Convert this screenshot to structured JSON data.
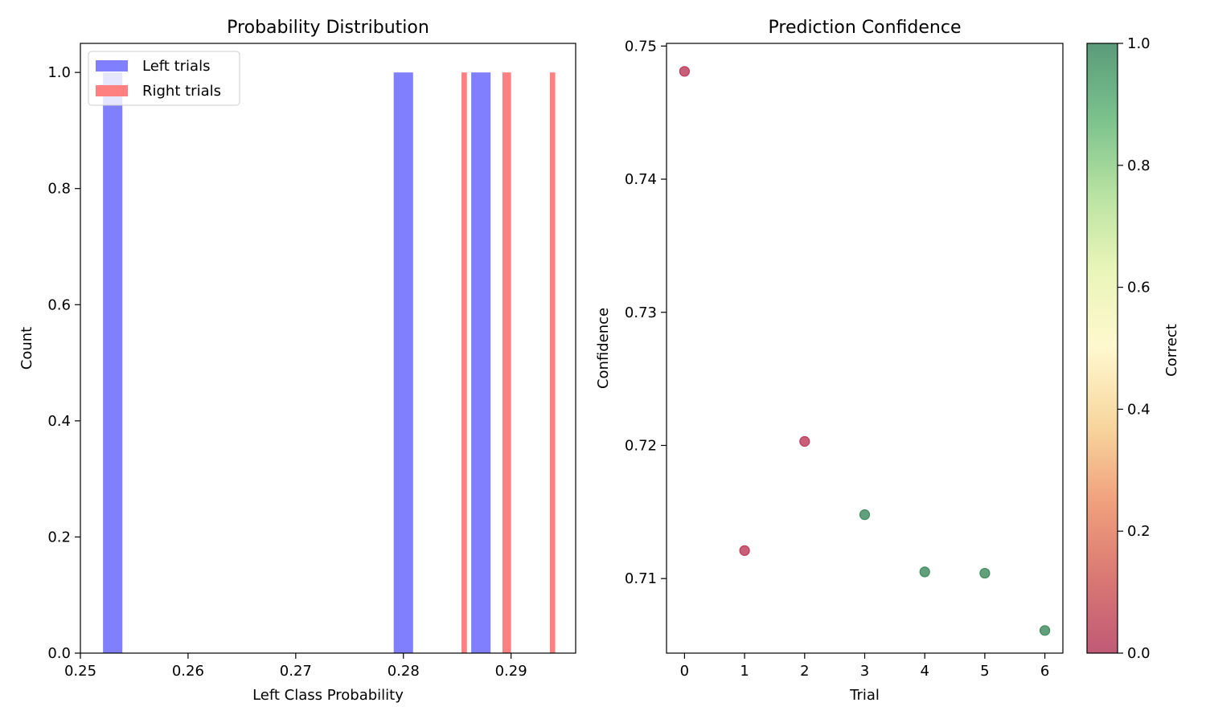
{
  "chart_data": [
    {
      "type": "bar",
      "title": "Probability Distribution",
      "xlabel": "Left Class Probability",
      "ylabel": "Count",
      "xlim": [
        0.25,
        0.296
      ],
      "ylim": [
        0,
        1.05
      ],
      "xticks": [
        0.25,
        0.26,
        0.27,
        0.28,
        0.29
      ],
      "yticks": [
        0.0,
        0.2,
        0.4,
        0.6,
        0.8,
        1.0
      ],
      "xtick_labels": [
        "0.25",
        "0.26",
        "0.27",
        "0.28",
        "0.29"
      ],
      "ytick_labels": [
        "0.0",
        "0.2",
        "0.4",
        "0.6",
        "0.8",
        "1.0"
      ],
      "grid": false,
      "legend_position": "upper-left",
      "series": [
        {
          "name": "Left trials",
          "color": "#8080ff",
          "bars": [
            {
              "x0": 0.2521,
              "x1": 0.2539,
              "count": 1
            },
            {
              "x0": 0.2791,
              "x1": 0.2809,
              "count": 1
            },
            {
              "x0": 0.2863,
              "x1": 0.2881,
              "count": 1
            }
          ]
        },
        {
          "name": "Right trials",
          "color": "#ff8080",
          "bars": [
            {
              "x0": 0.2854,
              "x1": 0.2859,
              "count": 1
            },
            {
              "x0": 0.2892,
              "x1": 0.29,
              "count": 1
            },
            {
              "x0": 0.2936,
              "x1": 0.2941,
              "count": 1
            }
          ]
        }
      ]
    },
    {
      "type": "scatter",
      "title": "Prediction Confidence",
      "xlabel": "Trial",
      "ylabel": "Confidence",
      "xlim": [
        -0.3,
        6.3
      ],
      "ylim": [
        0.7044,
        0.7502
      ],
      "xticks": [
        0,
        1,
        2,
        3,
        4,
        5,
        6
      ],
      "yticks": [
        0.71,
        0.72,
        0.73,
        0.74,
        0.75
      ],
      "xtick_labels": [
        "0",
        "1",
        "2",
        "3",
        "4",
        "5",
        "6"
      ],
      "ytick_labels": [
        "0.71",
        "0.72",
        "0.73",
        "0.74",
        "0.75"
      ],
      "grid": false,
      "colorbar": {
        "label": "Correct",
        "min": 0,
        "max": 1,
        "ticks": [
          0.0,
          0.2,
          0.4,
          0.6,
          0.8,
          1.0
        ],
        "tick_labels": [
          "0.0",
          "0.2",
          "0.4",
          "0.6",
          "0.8",
          "1.0"
        ],
        "colormap": "RdYlGn"
      },
      "points": [
        {
          "x": 0,
          "y": 0.7481,
          "correct": 0
        },
        {
          "x": 1,
          "y": 0.7121,
          "correct": 0
        },
        {
          "x": 2,
          "y": 0.7203,
          "correct": 0
        },
        {
          "x": 3,
          "y": 0.7148,
          "correct": 1
        },
        {
          "x": 4,
          "y": 0.7105,
          "correct": 1
        },
        {
          "x": 5,
          "y": 0.7104,
          "correct": 1
        },
        {
          "x": 6,
          "y": 0.7061,
          "correct": 1
        }
      ]
    }
  ]
}
